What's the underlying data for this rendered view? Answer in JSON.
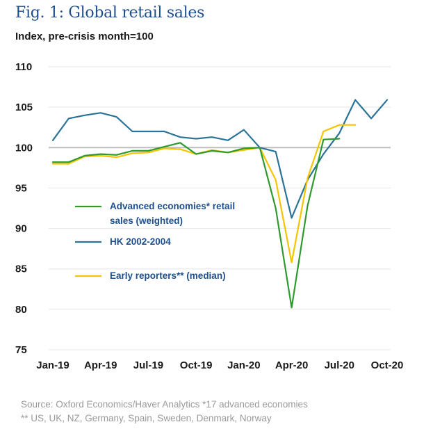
{
  "title": "Fig. 1: Global retail sales",
  "subtitle": "Index, pre-crisis month=100",
  "source_line1": "Source: Oxford Economics/Haver Analytics *17 advanced economies",
  "source_line2": "** US, UK, NZ, Germany, Spain, Sweden, Denmark, Norway",
  "colors": {
    "advanced": "#2e9a2e",
    "hk": "#2a7398",
    "early": "#f5c400",
    "reference": "#bdbdbd",
    "grid": "#e6e6e6"
  },
  "chart_data": {
    "type": "line",
    "title": "Fig. 1: Global retail sales",
    "ylabel": "Index, pre-crisis month=100",
    "xlabel": "",
    "ylim": [
      75,
      110
    ],
    "yticks": [
      75,
      80,
      85,
      90,
      95,
      100,
      105,
      110
    ],
    "reference_line": 100,
    "x": [
      "Jan-19",
      "Feb-19",
      "Mar-19",
      "Apr-19",
      "May-19",
      "Jun-19",
      "Jul-19",
      "Aug-19",
      "Sep-19",
      "Oct-19",
      "Nov-19",
      "Dec-19",
      "Jan-20",
      "Feb-20",
      "Mar-20",
      "Apr-20",
      "May-20",
      "Jun-20",
      "Jul-20",
      "Aug-20",
      "Sep-20",
      "Oct-20"
    ],
    "xtick_labels": [
      "Jan-19",
      "Apr-19",
      "Jul-19",
      "Oct-19",
      "Jan-20",
      "Apr-20",
      "Jul-20",
      "Oct-20"
    ],
    "series": [
      {
        "name": "Advanced economies* retail sales (weighted)",
        "legend_lines": [
          "Advanced economies* retail",
          "sales (weighted)"
        ],
        "color_key": "advanced",
        "values": [
          98.2,
          98.2,
          99.0,
          99.2,
          99.1,
          99.6,
          99.6,
          100.1,
          100.6,
          99.2,
          99.6,
          99.4,
          99.9,
          100.0,
          92.5,
          80.2,
          92.8,
          101.0,
          101.1,
          null,
          null,
          null
        ]
      },
      {
        "name": "HK 2002-2004",
        "legend_lines": [
          "HK 2002-2004"
        ],
        "color_key": "hk",
        "values": [
          100.9,
          103.6,
          104.0,
          104.3,
          103.8,
          102.0,
          102.0,
          102.0,
          101.3,
          101.1,
          101.3,
          100.9,
          102.2,
          100.0,
          99.5,
          91.3,
          96.0,
          99.2,
          101.8,
          105.9,
          103.6,
          105.9
        ]
      },
      {
        "name": "Early reporters** (median)",
        "legend_lines": [
          "Early reporters** (median)"
        ],
        "color_key": "early",
        "values": [
          98.0,
          98.0,
          98.9,
          99.0,
          98.8,
          99.3,
          99.4,
          99.9,
          99.8,
          99.2,
          99.7,
          99.4,
          99.7,
          100.0,
          96.0,
          85.8,
          96.2,
          102.0,
          102.8,
          102.8,
          null,
          null
        ]
      }
    ]
  }
}
